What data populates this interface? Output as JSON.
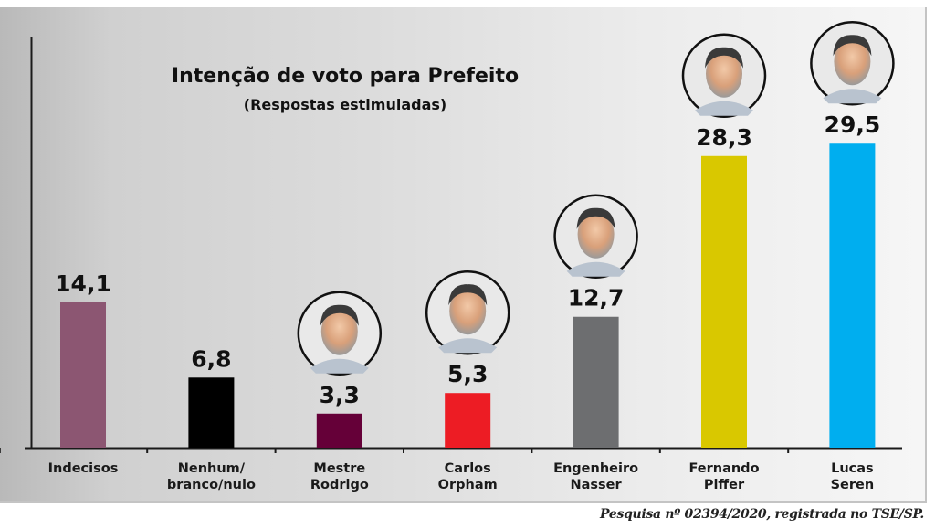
{
  "chart_data": {
    "type": "bar",
    "title": "Intenção de voto para Prefeito",
    "subtitle": "(Respostas estimuladas)",
    "xlabel": "",
    "ylabel": "",
    "ylim": [
      0,
      32
    ],
    "grid": false,
    "categories": [
      [
        "Indecisos"
      ],
      [
        "Nenhum/",
        "branco/nulo"
      ],
      [
        "Mestre",
        "Rodrigo"
      ],
      [
        "Carlos",
        "Orpham"
      ],
      [
        "Engenheiro",
        "Nasser"
      ],
      [
        "Fernando",
        "Piffer"
      ],
      [
        "Lucas",
        "Seren"
      ]
    ],
    "values": [
      14.1,
      6.8,
      3.3,
      5.3,
      12.7,
      28.3,
      29.5
    ],
    "value_labels": [
      "14,1",
      "6,8",
      "3,3",
      "5,3",
      "12,7",
      "28,3",
      "29,5"
    ],
    "colors": [
      "#8c5672",
      "#000000",
      "#650038",
      "#ed1c24",
      "#6d6e70",
      "#d9c800",
      "#00aeef"
    ],
    "has_photo": [
      false,
      false,
      true,
      true,
      true,
      true,
      true
    ]
  },
  "footnote": "Pesquisa nº 02394/2020, registrada no TSE/SP."
}
